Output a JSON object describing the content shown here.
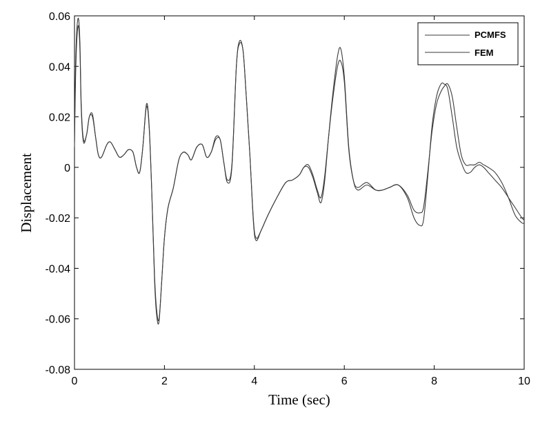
{
  "chart_data": {
    "type": "line",
    "title": "",
    "xlabel": "Time (sec)",
    "ylabel": "Displacement",
    "xlim": [
      0,
      10
    ],
    "ylim": [
      -0.08,
      0.06
    ],
    "xticks": [
      0,
      2,
      4,
      6,
      8,
      10
    ],
    "xtick_labels": [
      "0",
      "2",
      "4",
      "6",
      "8",
      "10"
    ],
    "yticks": [
      -0.08,
      -0.06,
      -0.04,
      -0.02,
      0,
      0.02,
      0.04,
      0.06
    ],
    "ytick_labels": [
      "-0.08",
      "-0.06",
      "-0.04",
      "-0.02",
      "0",
      "0.02",
      "0.04",
      "0.06"
    ],
    "grid": false,
    "legend_position": "top-right",
    "line_color": "#3a3a3a",
    "series": [
      {
        "name": "PCMFS",
        "x": [
          0,
          0.03,
          0.08,
          0.12,
          0.15,
          0.2,
          0.27,
          0.33,
          0.4,
          0.47,
          0.53,
          0.6,
          0.72,
          0.8,
          0.9,
          1.0,
          1.1,
          1.2,
          1.3,
          1.38,
          1.45,
          1.52,
          1.6,
          1.66,
          1.72,
          1.78,
          1.83,
          1.88,
          1.94,
          2.0,
          2.08,
          2.2,
          2.32,
          2.42,
          2.52,
          2.6,
          2.72,
          2.84,
          2.94,
          3.04,
          3.14,
          3.24,
          3.32,
          3.4,
          3.5,
          3.6,
          3.67,
          3.75,
          3.82,
          3.9,
          3.98,
          4.04,
          4.15,
          4.3,
          4.5,
          4.7,
          4.85,
          5.0,
          5.1,
          5.2,
          5.3,
          5.4,
          5.48,
          5.56,
          5.65,
          5.75,
          5.85,
          5.92,
          6.0,
          6.1,
          6.2,
          6.3,
          6.5,
          6.7,
          6.85,
          7.0,
          7.2,
          7.4,
          7.55,
          7.68,
          7.76,
          7.85,
          7.95,
          8.05,
          8.15,
          8.22,
          8.3,
          8.4,
          8.5,
          8.6,
          8.7,
          8.8,
          8.9,
          9.0,
          9.1,
          9.2,
          9.35,
          9.5,
          9.65,
          9.8,
          9.95,
          10.0
        ],
        "y": [
          0.01,
          0.045,
          0.059,
          0.05,
          0.025,
          0.011,
          0.013,
          0.02,
          0.021,
          0.012,
          0.005,
          0.004,
          0.009,
          0.01,
          0.007,
          0.004,
          0.005,
          0.007,
          0.006,
          0.0,
          -0.002,
          0.008,
          0.025,
          0.017,
          -0.01,
          -0.045,
          -0.059,
          -0.061,
          -0.045,
          -0.028,
          -0.016,
          -0.008,
          0.003,
          0.006,
          0.005,
          0.003,
          0.008,
          0.009,
          0.004,
          0.006,
          0.011,
          0.011,
          0.002,
          -0.006,
          0.0,
          0.04,
          0.05,
          0.046,
          0.028,
          0.005,
          -0.022,
          -0.029,
          -0.025,
          -0.019,
          -0.012,
          -0.006,
          -0.005,
          -0.003,
          0.0,
          0.0,
          -0.004,
          -0.01,
          -0.014,
          -0.006,
          0.012,
          0.03,
          0.044,
          0.047,
          0.036,
          0.008,
          -0.005,
          -0.009,
          -0.007,
          -0.009,
          -0.009,
          -0.008,
          -0.007,
          -0.012,
          -0.02,
          -0.023,
          -0.021,
          -0.005,
          0.016,
          0.028,
          0.033,
          0.033,
          0.031,
          0.02,
          0.008,
          0.002,
          -0.002,
          -0.002,
          0.0,
          0.001,
          0.0,
          -0.002,
          -0.005,
          -0.008,
          -0.012,
          -0.016,
          -0.02,
          -0.021
        ]
      },
      {
        "name": "FEM",
        "x": [
          0,
          0.03,
          0.08,
          0.12,
          0.15,
          0.2,
          0.27,
          0.33,
          0.4,
          0.47,
          0.53,
          0.6,
          0.72,
          0.8,
          0.9,
          1.0,
          1.1,
          1.2,
          1.3,
          1.38,
          1.45,
          1.52,
          1.6,
          1.66,
          1.72,
          1.78,
          1.83,
          1.88,
          1.94,
          2.0,
          2.08,
          2.2,
          2.32,
          2.42,
          2.52,
          2.6,
          2.72,
          2.84,
          2.94,
          3.04,
          3.14,
          3.24,
          3.32,
          3.4,
          3.5,
          3.6,
          3.67,
          3.75,
          3.82,
          3.9,
          3.98,
          4.04,
          4.15,
          4.3,
          4.5,
          4.7,
          4.85,
          5.0,
          5.1,
          5.2,
          5.3,
          5.4,
          5.48,
          5.56,
          5.65,
          5.75,
          5.85,
          5.92,
          6.0,
          6.1,
          6.2,
          6.3,
          6.5,
          6.7,
          6.85,
          7.0,
          7.2,
          7.4,
          7.55,
          7.68,
          7.76,
          7.85,
          7.95,
          8.05,
          8.15,
          8.22,
          8.3,
          8.4,
          8.5,
          8.6,
          8.7,
          8.8,
          8.9,
          9.0,
          9.1,
          9.2,
          9.35,
          9.5,
          9.65,
          9.8,
          9.95,
          10.0
        ],
        "y": [
          0.008,
          0.04,
          0.056,
          0.047,
          0.023,
          0.01,
          0.013,
          0.02,
          0.02,
          0.012,
          0.005,
          0.004,
          0.009,
          0.01,
          0.007,
          0.004,
          0.005,
          0.007,
          0.006,
          0.0,
          -0.002,
          0.008,
          0.024,
          0.016,
          -0.01,
          -0.043,
          -0.057,
          -0.06,
          -0.045,
          -0.028,
          -0.016,
          -0.008,
          0.003,
          0.006,
          0.005,
          0.003,
          0.008,
          0.009,
          0.004,
          0.006,
          0.012,
          0.011,
          0.002,
          -0.005,
          0.001,
          0.04,
          0.049,
          0.046,
          0.028,
          0.005,
          -0.021,
          -0.028,
          -0.025,
          -0.019,
          -0.012,
          -0.006,
          -0.005,
          -0.003,
          0.0,
          0.001,
          -0.003,
          -0.009,
          -0.012,
          -0.004,
          0.012,
          0.028,
          0.04,
          0.042,
          0.034,
          0.007,
          -0.005,
          -0.008,
          -0.006,
          -0.009,
          -0.009,
          -0.008,
          -0.007,
          -0.011,
          -0.017,
          -0.018,
          -0.016,
          -0.003,
          0.014,
          0.025,
          0.03,
          0.032,
          0.033,
          0.028,
          0.016,
          0.005,
          0.001,
          0.001,
          0.001,
          0.002,
          0.001,
          0.0,
          -0.002,
          -0.006,
          -0.012,
          -0.019,
          -0.022,
          -0.022
        ]
      }
    ]
  }
}
